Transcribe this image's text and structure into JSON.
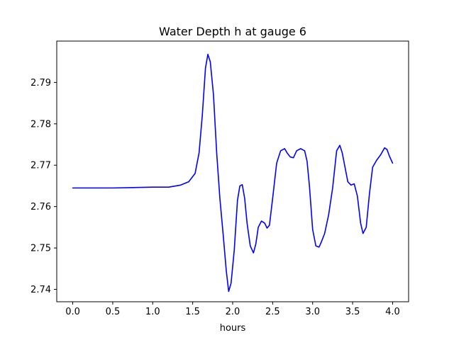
{
  "chart_data": {
    "type": "line",
    "title": "Water Depth h at gauge 6",
    "xlabel": "hours",
    "ylabel": "",
    "xlim": [
      -0.2,
      4.2
    ],
    "ylim": [
      2.737,
      2.8
    ],
    "grid": false,
    "legend": "none",
    "x_ticks": [
      0.0,
      0.5,
      1.0,
      1.5,
      2.0,
      2.5,
      3.0,
      3.5,
      4.0
    ],
    "x_tick_labels": [
      "0.0",
      "0.5",
      "1.0",
      "1.5",
      "2.0",
      "2.5",
      "3.0",
      "3.5",
      "4.0"
    ],
    "y_ticks": [
      2.74,
      2.75,
      2.76,
      2.77,
      2.78,
      2.79
    ],
    "y_tick_labels": [
      "2.74",
      "2.75",
      "2.76",
      "2.77",
      "2.78",
      "2.79"
    ],
    "series": [
      {
        "color": "#0000ff",
        "x": [
          0.0,
          0.25,
          0.5,
          0.75,
          1.0,
          1.2,
          1.35,
          1.45,
          1.53,
          1.58,
          1.62,
          1.66,
          1.69,
          1.72,
          1.76,
          1.8,
          1.84,
          1.88,
          1.92,
          1.95,
          1.98,
          2.02,
          2.06,
          2.09,
          2.12,
          2.15,
          2.18,
          2.22,
          2.26,
          2.29,
          2.32,
          2.36,
          2.4,
          2.43,
          2.46,
          2.5,
          2.55,
          2.6,
          2.65,
          2.68,
          2.72,
          2.76,
          2.8,
          2.85,
          2.9,
          2.93,
          2.96,
          3.0,
          3.04,
          3.08,
          3.11,
          3.15,
          3.2,
          3.25,
          3.3,
          3.34,
          3.37,
          3.4,
          3.44,
          3.48,
          3.52,
          3.56,
          3.6,
          3.63,
          3.67,
          3.71,
          3.75,
          3.8,
          3.85,
          3.9,
          3.93,
          3.96,
          4.0
        ],
        "y": [
          2.7645,
          2.7645,
          2.7645,
          2.7646,
          2.7647,
          2.7647,
          2.7652,
          2.766,
          2.768,
          2.773,
          2.782,
          2.7935,
          2.7968,
          2.795,
          2.787,
          2.773,
          2.762,
          2.7535,
          2.7445,
          2.7395,
          2.7415,
          2.7495,
          2.7615,
          2.765,
          2.7653,
          2.762,
          2.756,
          2.7505,
          2.7488,
          2.751,
          2.755,
          2.7565,
          2.756,
          2.7548,
          2.7555,
          2.762,
          2.7705,
          2.7735,
          2.774,
          2.773,
          2.772,
          2.7718,
          2.7735,
          2.774,
          2.7735,
          2.771,
          2.765,
          2.7545,
          2.7505,
          2.7502,
          2.7515,
          2.7535,
          2.758,
          2.7645,
          2.7735,
          2.7748,
          2.773,
          2.77,
          2.766,
          2.7652,
          2.7655,
          2.7625,
          2.756,
          2.7535,
          2.755,
          2.763,
          2.7695,
          2.7712,
          2.7725,
          2.7742,
          2.7738,
          2.7722,
          2.7705
        ]
      }
    ]
  }
}
